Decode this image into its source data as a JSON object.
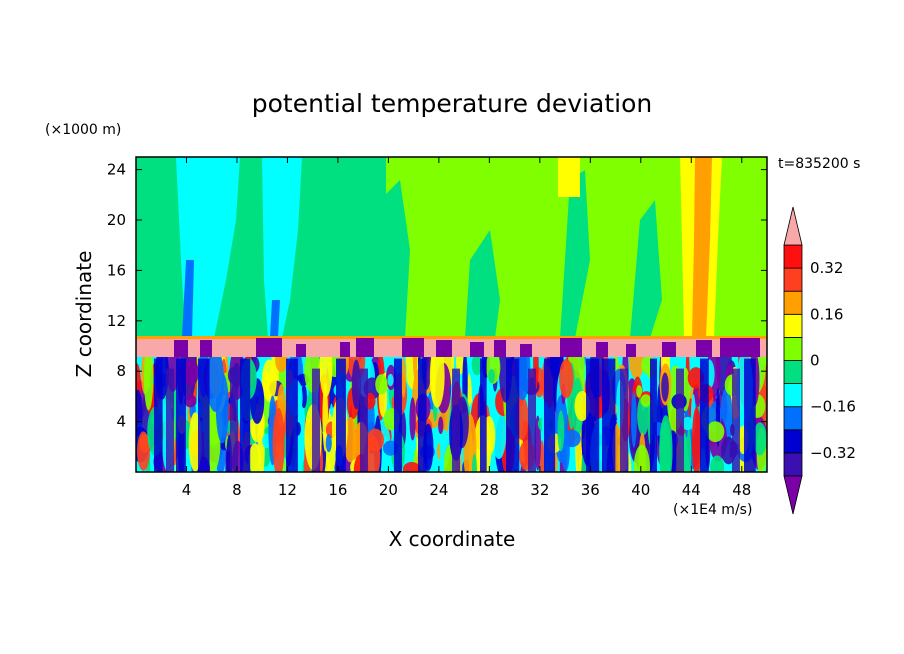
{
  "chart_data": {
    "type": "heatmap",
    "title": "potential temperature deviation",
    "xlabel": "X coordinate",
    "ylabel": "Z coordinate",
    "x_unit": "(×1E4 m/s)",
    "y_unit": "(×1000 m)",
    "time_label": "t=835200 s",
    "xlim": [
      0,
      50
    ],
    "ylim": [
      0,
      25
    ],
    "x_ticks": [
      4,
      8,
      12,
      16,
      20,
      24,
      28,
      32,
      36,
      40,
      44,
      48
    ],
    "y_ticks": [
      4,
      8,
      12,
      16,
      20,
      24
    ],
    "colorbar": {
      "levels": [
        -0.4,
        -0.32,
        -0.24,
        -0.16,
        -0.08,
        0,
        0.08,
        0.16,
        0.24,
        0.32,
        0.4
      ],
      "labeled_ticks": [
        "0.32",
        "0.16",
        "0",
        "−0.16",
        "−0.32"
      ],
      "labeled_values": [
        0.32,
        0.16,
        0,
        -0.16,
        -0.32
      ],
      "colors_low_to_high": [
        "#7a00a8",
        "#3a10b0",
        "#0000d0",
        "#0070ff",
        "#00ffff",
        "#00e080",
        "#80ff00",
        "#ffff00",
        "#ffa000",
        "#ff4020",
        "#ff1010",
        "#f8a8a8"
      ],
      "extend": "both"
    },
    "features": [
      {
        "name": "lower-layer",
        "z_range": [
          0,
          9
        ],
        "pattern": "turbulent mixed all colors"
      },
      {
        "name": "stable-band",
        "z_range": [
          9,
          10.7
        ],
        "value": 0.42,
        "color": "#f8a8a8"
      },
      {
        "name": "upper-layer",
        "z_range": [
          10.7,
          25
        ],
        "pattern": "mostly near 0 with cyan columns x=3-8 and x=10-13, yellow/orange near x=34 and x=43-47"
      }
    ]
  }
}
